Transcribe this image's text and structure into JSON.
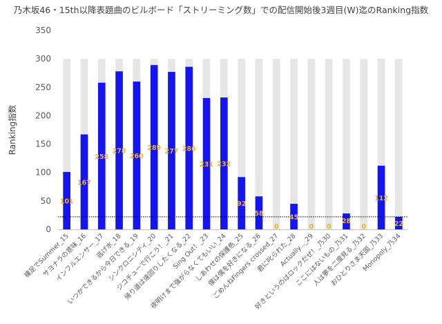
{
  "chart_data": {
    "type": "bar",
    "title": "乃木坂46・15th以降表題曲のビルボード「ストリーミング数」での配信開始後3週目(W)迄のRanking指数",
    "ylabel": "Ranking指数",
    "xlabel": "",
    "ylim": [
      0,
      350
    ],
    "yticks": [
      0,
      50,
      100,
      150,
      200,
      250,
      300,
      350
    ],
    "grid": false,
    "reference_line": 22,
    "colors": {
      "value": "#1515F0",
      "background": "#E6E6E6",
      "label": "#F0B030",
      "axis": "#595959"
    },
    "categories": [
      "裸足でSummer_15",
      "サヨナラの意味_16",
      "インフルエンサー_17",
      "逃げ水_18",
      "いつかできるから今日できる_19",
      "シンクロニシティ_20",
      "ジコチューで行こう！_21",
      "帰り道は遠回りしたくなる_22",
      "Sing Out！_23",
      "夜明けまで強がらなくてもいい_24",
      "しあわせの保護色_25",
      "僕は僕を好きになる_26",
      "ごめんねFingers crossed_27",
      "君に叱られた_28",
      "Actually..._29",
      "好きというのはロックだぜ！_乃30",
      "ここにはないもの_乃31",
      "人は夢を二度見る_乃32",
      "おひとりさま天国_乃33",
      "Monopoly_乃34"
    ],
    "series": [
      {
        "values": [
          101,
          167,
          258,
          278,
          260,
          289,
          277,
          286,
          231,
          232,
          92,
          58,
          0,
          45,
          0,
          0,
          28,
          0,
          112,
          22
        ],
        "labels": [
          "101",
          "167",
          "258",
          "278",
          "260",
          "289",
          "277",
          "286",
          "231",
          "232",
          "92",
          "58",
          "0",
          "45",
          "0",
          "0",
          "28",
          "0",
          "112",
          "22"
        ]
      }
    ]
  }
}
